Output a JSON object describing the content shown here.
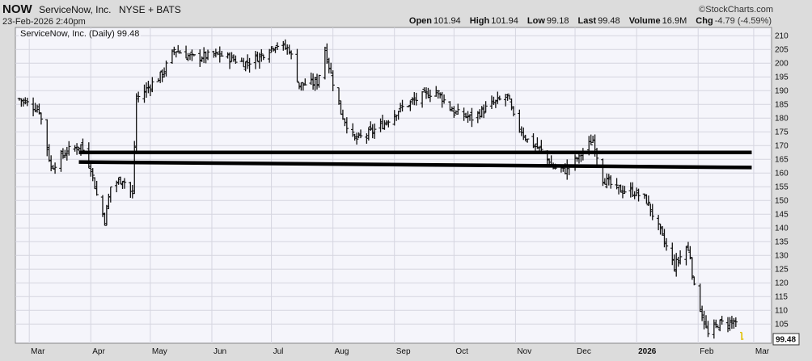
{
  "header": {
    "ticker": "NOW",
    "company": "ServiceNow, Inc.",
    "exchange": "NYSE + BATS",
    "datetime": "23-Feb-2026 2:40pm",
    "watermark": "©StockCharts.com",
    "series_label": "ServiceNow, Inc. (Daily) 99.48"
  },
  "stats": {
    "open_label": "Open",
    "open": "101.94",
    "high_label": "High",
    "high": "101.94",
    "low_label": "Low",
    "low": "99.18",
    "last_label": "Last",
    "last": "99.48",
    "volume_label": "Volume",
    "volume": "16.9M",
    "chg_label": "Chg",
    "chg": "-4.79 (-4.59%)"
  },
  "colors": {
    "bars": "#111111",
    "last_bar": "#e0c000",
    "trendlines": "#000000",
    "grid": "#d5d5e0",
    "plot_bg": "#f5f5fb"
  },
  "chart_data": {
    "type": "ohlc",
    "title": "ServiceNow, Inc. (Daily) 99.48",
    "ylim": [
      98,
      213
    ],
    "y_axis_position": "right",
    "grid": true,
    "y_ticks": [
      105,
      110,
      115,
      120,
      125,
      130,
      135,
      140,
      145,
      150,
      155,
      160,
      165,
      170,
      175,
      180,
      185,
      190,
      195,
      200,
      205,
      210
    ],
    "x_ticks": [
      {
        "label": "Mar",
        "date": "2025-03-01",
        "bold": false
      },
      {
        "label": "Apr",
        "date": "2025-04-01",
        "bold": false
      },
      {
        "label": "May",
        "date": "2025-05-01",
        "bold": false
      },
      {
        "label": "Jun",
        "date": "2025-06-01",
        "bold": false
      },
      {
        "label": "Jul",
        "date": "2025-07-01",
        "bold": false
      },
      {
        "label": "Aug",
        "date": "2025-08-01",
        "bold": false
      },
      {
        "label": "Sep",
        "date": "2025-09-01",
        "bold": false
      },
      {
        "label": "Oct",
        "date": "2025-10-01",
        "bold": false
      },
      {
        "label": "Nov",
        "date": "2025-11-01",
        "bold": false
      },
      {
        "label": "Dec",
        "date": "2025-12-01",
        "bold": false
      },
      {
        "label": "2026",
        "date": "2026-01-01",
        "bold": true
      },
      {
        "label": "Feb",
        "date": "2026-02-01",
        "bold": false
      },
      {
        "label": "Mar",
        "date": "2026-03-01",
        "bold": false
      }
    ],
    "last_value_label": "99.48",
    "trendlines": [
      {
        "x1": "2025-03-26",
        "y1": 167.5,
        "x2": "2026-02-28",
        "y2": 167.5
      },
      {
        "x1": "2025-03-26",
        "y1": 164.0,
        "x2": "2026-02-28",
        "y2": 162.0
      }
    ],
    "waypoints": [
      {
        "date": "2025-02-24",
        "close": 187
      },
      {
        "date": "2025-03-06",
        "close": 183
      },
      {
        "date": "2025-03-12",
        "close": 162
      },
      {
        "date": "2025-03-20",
        "close": 168
      },
      {
        "date": "2025-03-27",
        "close": 170
      },
      {
        "date": "2025-04-01",
        "close": 162
      },
      {
        "date": "2025-04-04",
        "close": 152
      },
      {
        "date": "2025-04-08",
        "close": 143
      },
      {
        "date": "2025-04-11",
        "close": 155
      },
      {
        "date": "2025-04-17",
        "close": 158
      },
      {
        "date": "2025-04-22",
        "close": 152
      },
      {
        "date": "2025-04-24",
        "close": 187
      },
      {
        "date": "2025-05-01",
        "close": 192
      },
      {
        "date": "2025-05-07",
        "close": 196
      },
      {
        "date": "2025-05-13",
        "close": 205
      },
      {
        "date": "2025-05-22",
        "close": 202
      },
      {
        "date": "2025-06-05",
        "close": 203
      },
      {
        "date": "2025-06-18",
        "close": 200
      },
      {
        "date": "2025-06-26",
        "close": 203
      },
      {
        "date": "2025-07-03",
        "close": 207
      },
      {
        "date": "2025-07-10",
        "close": 205
      },
      {
        "date": "2025-07-15",
        "close": 192
      },
      {
        "date": "2025-07-24",
        "close": 193
      },
      {
        "date": "2025-07-28",
        "close": 205
      },
      {
        "date": "2025-07-31",
        "close": 196
      },
      {
        "date": "2025-08-05",
        "close": 182
      },
      {
        "date": "2025-08-12",
        "close": 172
      },
      {
        "date": "2025-08-18",
        "close": 174
      },
      {
        "date": "2025-08-25",
        "close": 177
      },
      {
        "date": "2025-09-03",
        "close": 183
      },
      {
        "date": "2025-09-15",
        "close": 188
      },
      {
        "date": "2025-09-22",
        "close": 190
      },
      {
        "date": "2025-10-01",
        "close": 182
      },
      {
        "date": "2025-10-10",
        "close": 180
      },
      {
        "date": "2025-10-20",
        "close": 185
      },
      {
        "date": "2025-10-28",
        "close": 188
      },
      {
        "date": "2025-10-31",
        "close": 180
      },
      {
        "date": "2025-11-07",
        "close": 172
      },
      {
        "date": "2025-11-14",
        "close": 168
      },
      {
        "date": "2025-11-20",
        "close": 162
      },
      {
        "date": "2025-11-26",
        "close": 161
      },
      {
        "date": "2025-12-03",
        "close": 166
      },
      {
        "date": "2025-12-10",
        "close": 172
      },
      {
        "date": "2025-12-15",
        "close": 158
      },
      {
        "date": "2025-12-22",
        "close": 154
      },
      {
        "date": "2025-12-31",
        "close": 153
      },
      {
        "date": "2026-01-06",
        "close": 150
      },
      {
        "date": "2026-01-12",
        "close": 140
      },
      {
        "date": "2026-01-20",
        "close": 126
      },
      {
        "date": "2026-01-26",
        "close": 133
      },
      {
        "date": "2026-01-28",
        "close": 130
      },
      {
        "date": "2026-01-30",
        "close": 118
      },
      {
        "date": "2026-02-04",
        "close": 106
      },
      {
        "date": "2026-02-06",
        "close": 101
      },
      {
        "date": "2026-02-11",
        "close": 105
      },
      {
        "date": "2026-02-19",
        "close": 106
      },
      {
        "date": "2026-02-20",
        "close": 104.27
      }
    ],
    "last_bar": {
      "date": "2026-02-23",
      "open": 101.94,
      "high": 101.94,
      "low": 99.18,
      "close": 99.48
    }
  }
}
